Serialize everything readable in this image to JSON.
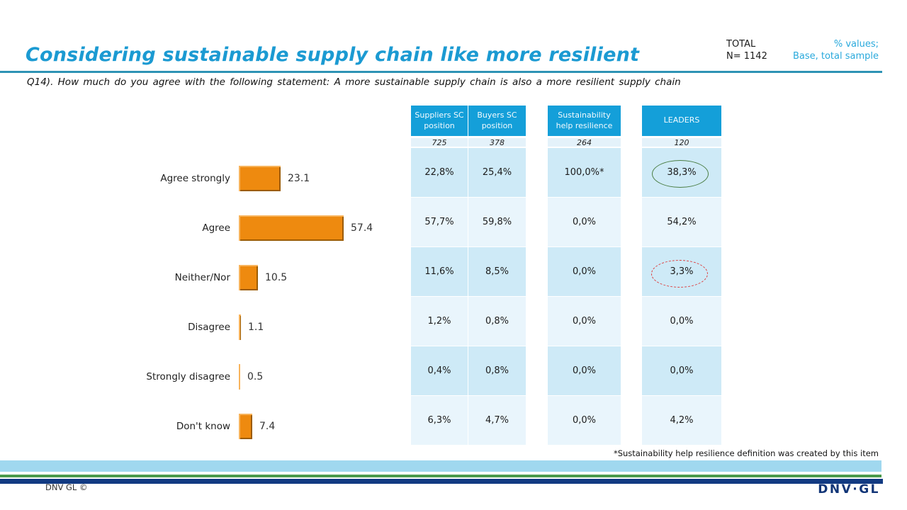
{
  "header": {
    "title": "Considering sustainable supply chain like more resilient",
    "total_label": "TOTAL",
    "total_n": "N= 1142",
    "values_note_line1": "% values;",
    "values_note_line2": "Base, total sample"
  },
  "question": "Q14). How much do you agree with the following statement: A more sustainable supply chain is also a more resilient supply chain",
  "chart_data": {
    "type": "bar",
    "orientation": "horizontal",
    "title": "",
    "categories": [
      "Agree strongly",
      "Agree",
      "Neither/Nor",
      "Disagree",
      "Strongly disagree",
      "Don't know"
    ],
    "values": [
      23.1,
      57.4,
      10.5,
      1.1,
      0.5,
      7.4
    ],
    "value_labels": [
      "23.1",
      "57.4",
      "10.5",
      "1.1",
      "0.5",
      "7.4"
    ],
    "xlim": [
      0,
      60
    ],
    "grid": false,
    "bar_color": "#EE8A0F"
  },
  "table": {
    "columns": [
      {
        "header": "Suppliers SC position",
        "base": "725",
        "values": [
          "22,8%",
          "57,7%",
          "11,6%",
          "1,2%",
          "0,4%",
          "6,3%"
        ]
      },
      {
        "header": "Buyers SC position",
        "base": "378",
        "values": [
          "25,4%",
          "59,8%",
          "8,5%",
          "0,8%",
          "0,8%",
          "4,7%"
        ]
      },
      {
        "header": "Sustainability help resilience",
        "base": "264",
        "values": [
          "100,0%*",
          "0,0%",
          "0,0%",
          "0,0%",
          "0,0%",
          "0,0%"
        ]
      },
      {
        "header": "LEADERS",
        "base": "120",
        "values": [
          "38,3%",
          "54,2%",
          "3,3%",
          "0,0%",
          "0,0%",
          "4,2%"
        ]
      }
    ],
    "annotations": [
      {
        "target": "LEADERS / Agree strongly",
        "value": "38,3%",
        "style": "solid-green-ellipse",
        "color": "#4B7E44"
      },
      {
        "target": "LEADERS / Neither/Nor",
        "value": "3,3%",
        "style": "dashed-red-ellipse",
        "color": "#DD3C3C"
      }
    ]
  },
  "footnote": "*Sustainability help resilience definition was created by this item",
  "footer": {
    "copyright": "DNV GL ©",
    "logo": "DNV·GL"
  },
  "colors": {
    "title": "#1B9AD2",
    "values_note": "#29A9DC",
    "title_rule": "#2E93B5",
    "table_header_bg": "#149FD9",
    "row_dark": "#CEEAF7",
    "row_light": "#E9F5FC",
    "bar_orange": "#EE8A0F",
    "stripe_lightblue": "#A0D8EF",
    "stripe_green": "#4C9A4C",
    "stripe_navy": "#123A82",
    "logo_navy": "#123577"
  }
}
